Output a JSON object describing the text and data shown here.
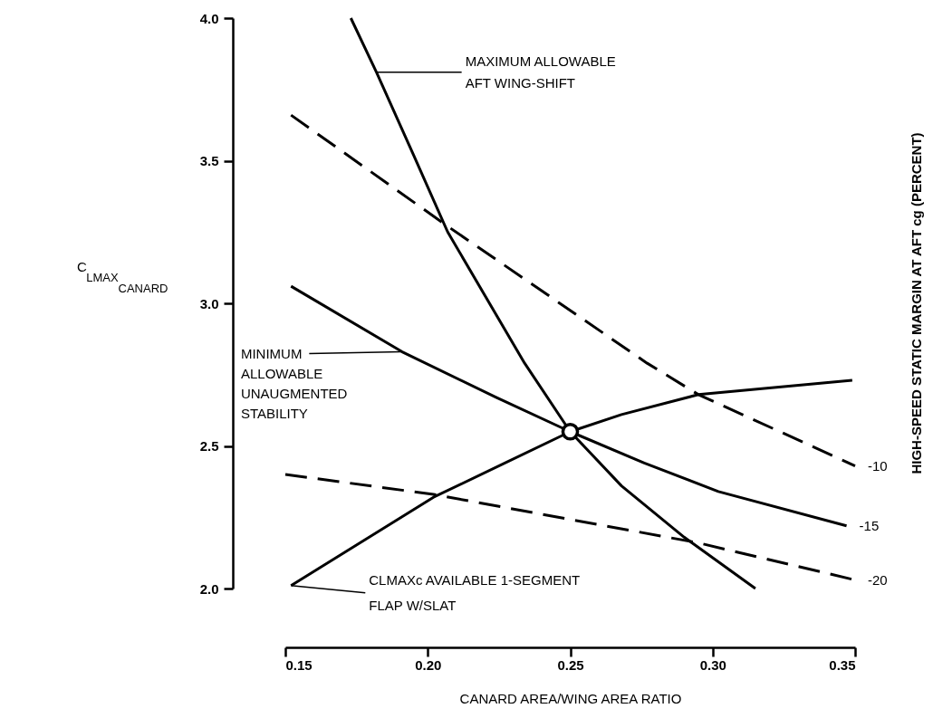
{
  "chart_data": {
    "type": "line",
    "xlabel": "CANARD AREA/WING AREA RATIO",
    "ylabel": "C$_{LMAX}$$_{CANARD}$",
    "y2label": "HIGH-SPEED STATIC MARGIN AT AFT cg (PERCENT)",
    "xlim": [
      0.15,
      0.35
    ],
    "ylim": [
      2.0,
      4.0
    ],
    "xticks": [
      {
        "value": 0.15,
        "label": "0.15"
      },
      {
        "value": 0.2,
        "label": "0.20"
      },
      {
        "value": 0.25,
        "label": "0.25"
      },
      {
        "value": 0.3,
        "label": "0.30"
      },
      {
        "value": 0.35,
        "label": "0.35"
      }
    ],
    "yticks": [
      {
        "value": 2.0,
        "label": "2.0"
      },
      {
        "value": 2.5,
        "label": "2.5"
      },
      {
        "value": 3.0,
        "label": "3.0"
      },
      {
        "value": 3.5,
        "label": "3.5"
      },
      {
        "value": 4.0,
        "label": "4.0"
      }
    ],
    "grid": false,
    "series": [
      {
        "color": "#000000",
        "line_style": "solid",
        "x": [
          0.173,
          0.182,
          0.195,
          0.207,
          0.234,
          0.25,
          0.268,
          0.29,
          0.315
        ],
        "values": [
          4.0,
          3.81,
          3.52,
          3.25,
          2.79,
          2.55,
          2.36,
          2.18,
          2.0
        ]
      },
      {
        "color": "#000000",
        "line_style": "solid",
        "x": [
          0.152,
          0.191,
          0.224,
          0.25,
          0.276,
          0.302,
          0.347
        ],
        "values": [
          3.06,
          2.83,
          2.67,
          2.55,
          2.44,
          2.34,
          2.22
        ]
      },
      {
        "color": "#000000",
        "line_style": "solid",
        "x": [
          0.152,
          0.202,
          0.25,
          0.268,
          0.295,
          0.349
        ],
        "values": [
          2.01,
          2.32,
          2.55,
          2.61,
          2.68,
          2.73
        ]
      },
      {
        "color": "#000000",
        "line_style": "dashed",
        "x": [
          0.152,
          0.207,
          0.277,
          0.295,
          0.35
        ],
        "values": [
          3.66,
          3.27,
          2.79,
          2.68,
          2.43
        ]
      },
      {
        "color": "#000000",
        "line_style": "dashed",
        "x": [
          0.15,
          0.202,
          0.295,
          0.35
        ],
        "values": [
          2.4,
          2.33,
          2.16,
          2.03
        ]
      },
      {
        "type": "scatter",
        "color": "#000000",
        "marker": "circle",
        "x": [
          0.25
        ],
        "values": [
          2.55
        ]
      }
    ],
    "annotations": [
      {
        "text": "MAXIMUM ALLOWABLE\nAFT WING-SHIFT",
        "x": 0.182,
        "y": 3.81
      },
      {
        "text": "MINIMUM\nALLOWABLE\nUNAUGMENTED\nSTABILITY",
        "x": 0.191,
        "y": 2.83
      },
      {
        "text": "CLMAXc AVAILABLE 1-SEGMENT\nFLAP W/SLAT",
        "x": 0.152,
        "y": 2.01
      },
      {
        "text": "-10",
        "x": 0.35,
        "y": 2.43
      },
      {
        "text": "-15",
        "x": 0.347,
        "y": 2.22
      },
      {
        "text": "-20",
        "x": 0.35,
        "y": 2.03
      }
    ]
  }
}
